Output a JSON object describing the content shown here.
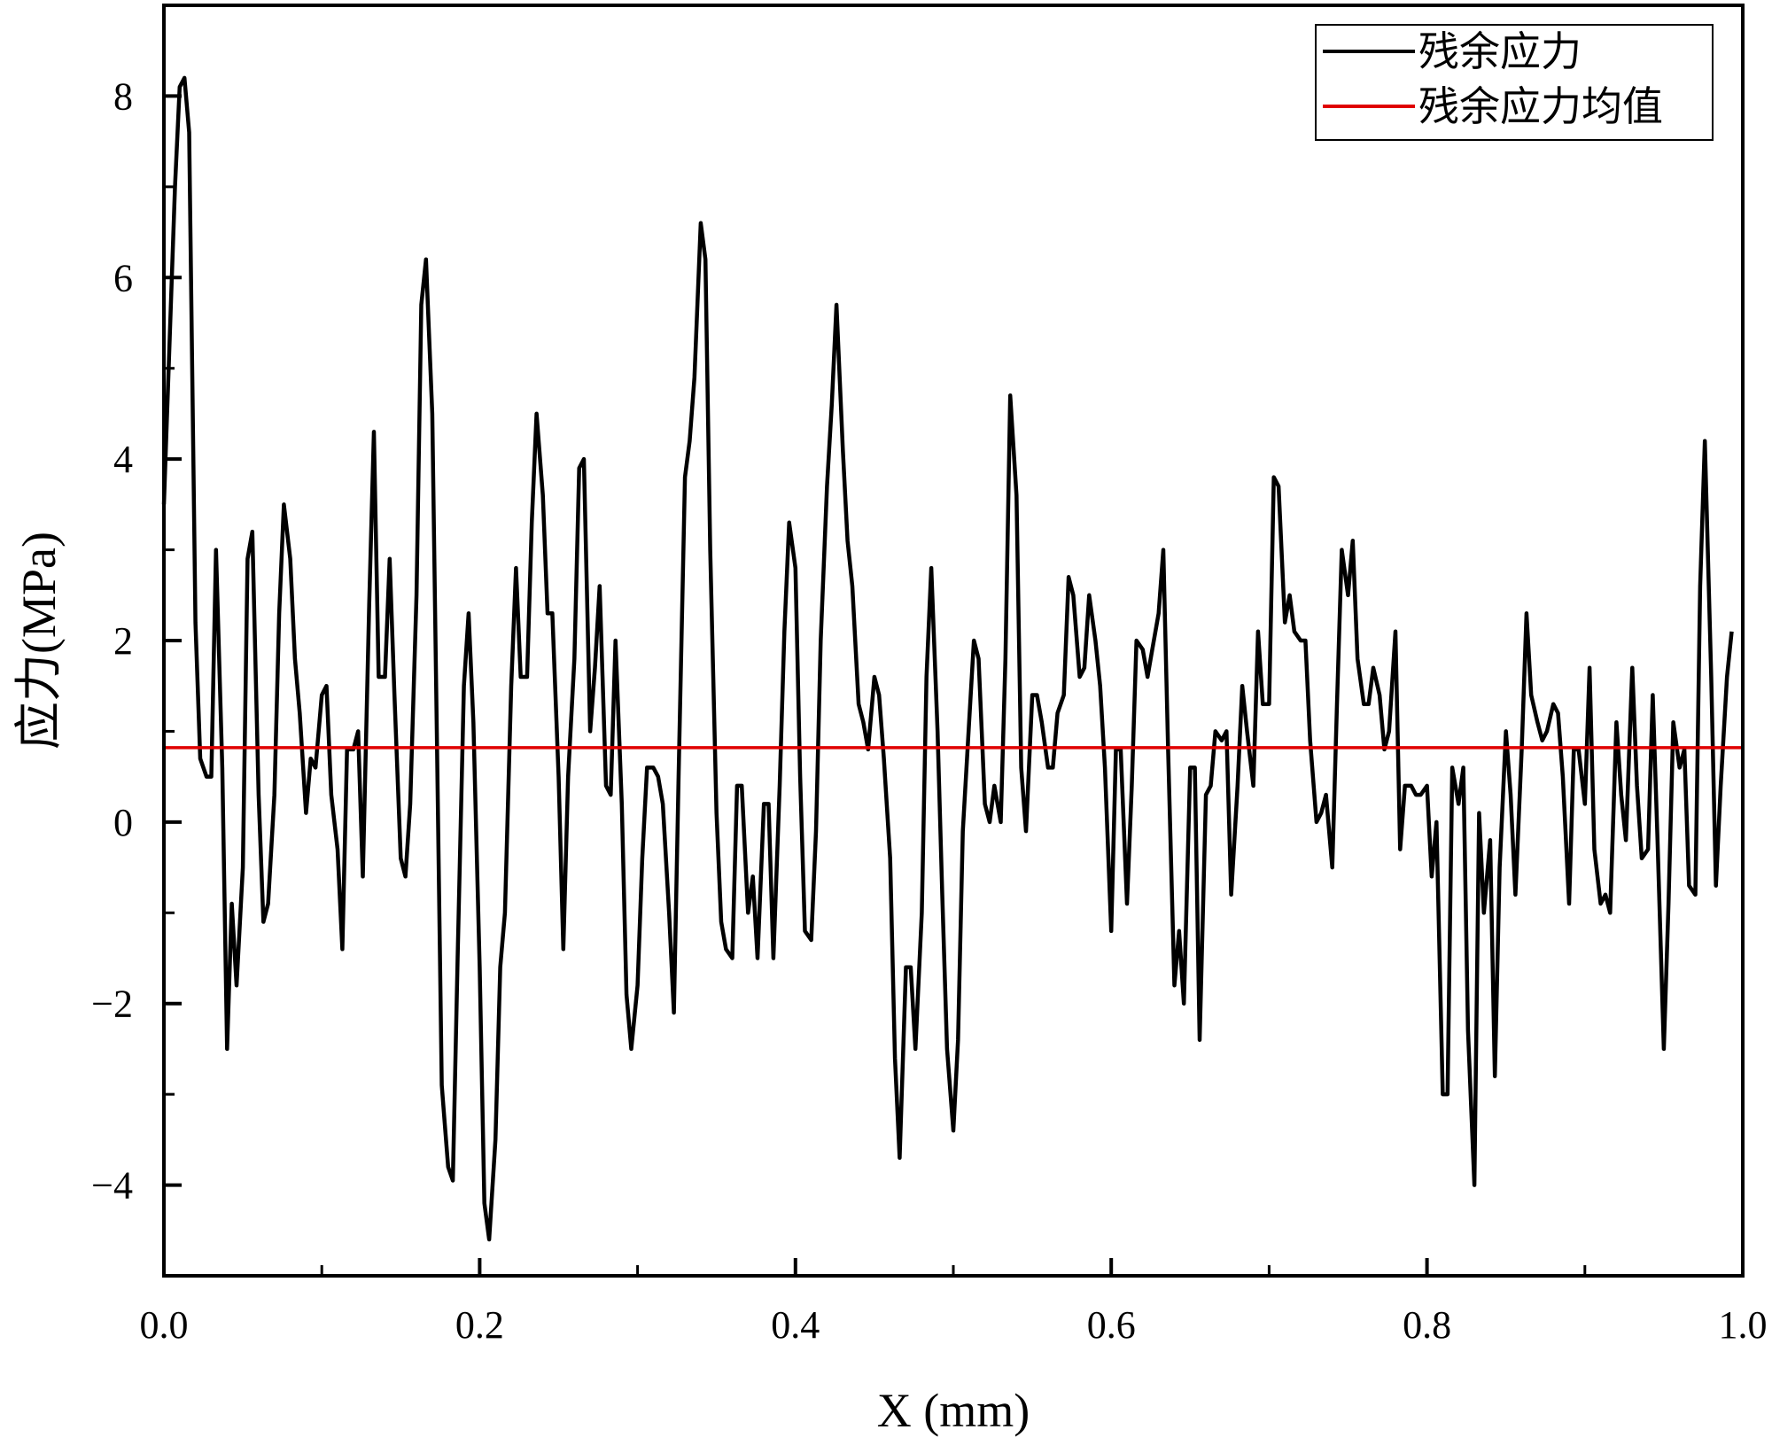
{
  "chart_data": {
    "type": "line",
    "xlabel": "X (mm)",
    "ylabel": "应力(MPa)",
    "xlim": [
      0.0,
      1.0
    ],
    "ylim": [
      -5.0,
      9.0
    ],
    "x_ticks": [
      0.0,
      0.2,
      0.4,
      0.6,
      0.8,
      1.0
    ],
    "x_tick_labels": [
      "0.0",
      "0.2",
      "0.4",
      "0.6",
      "0.8",
      "1.0"
    ],
    "x_minor_ticks": [
      0.1,
      0.3,
      0.5,
      0.7,
      0.9
    ],
    "y_ticks": [
      -4,
      -2,
      0,
      2,
      4,
      6,
      8
    ],
    "y_tick_labels": [
      "−4",
      "−2",
      "0",
      "2",
      "4",
      "6",
      "8"
    ],
    "y_minor_ticks": [
      -3,
      -1,
      1,
      3,
      5,
      7
    ],
    "grid": false,
    "legend_position": "top-right",
    "series": [
      {
        "name": "残余应力",
        "color": "#000000",
        "points": [
          [
            0.0,
            3.5
          ],
          [
            0.007,
            7.0
          ],
          [
            0.01,
            8.1
          ],
          [
            0.013,
            8.2
          ],
          [
            0.016,
            7.6
          ],
          [
            0.02,
            2.2
          ],
          [
            0.023,
            0.7
          ],
          [
            0.027,
            0.5
          ],
          [
            0.03,
            0.5
          ],
          [
            0.033,
            3.0
          ],
          [
            0.037,
            0.6
          ],
          [
            0.04,
            -2.5
          ],
          [
            0.043,
            -0.9
          ],
          [
            0.046,
            -1.8
          ],
          [
            0.05,
            -0.5
          ],
          [
            0.053,
            2.9
          ],
          [
            0.056,
            3.2
          ],
          [
            0.06,
            0.3
          ],
          [
            0.063,
            -1.1
          ],
          [
            0.066,
            -0.9
          ],
          [
            0.07,
            0.3
          ],
          [
            0.073,
            2.3
          ],
          [
            0.076,
            3.5
          ],
          [
            0.08,
            2.9
          ],
          [
            0.083,
            1.8
          ],
          [
            0.086,
            1.2
          ],
          [
            0.09,
            0.1
          ],
          [
            0.093,
            0.7
          ],
          [
            0.096,
            0.6
          ],
          [
            0.1,
            1.4
          ],
          [
            0.103,
            1.5
          ],
          [
            0.106,
            0.3
          ],
          [
            0.11,
            -0.3
          ],
          [
            0.113,
            -1.4
          ],
          [
            0.116,
            0.8
          ],
          [
            0.12,
            0.8
          ],
          [
            0.123,
            1.0
          ],
          [
            0.126,
            -0.6
          ],
          [
            0.13,
            2.4
          ],
          [
            0.133,
            4.3
          ],
          [
            0.136,
            1.6
          ],
          [
            0.14,
            1.6
          ],
          [
            0.143,
            2.9
          ],
          [
            0.146,
            1.4
          ],
          [
            0.15,
            -0.4
          ],
          [
            0.153,
            -0.6
          ],
          [
            0.156,
            0.2
          ],
          [
            0.16,
            2.5
          ],
          [
            0.163,
            5.7
          ],
          [
            0.166,
            6.2
          ],
          [
            0.17,
            4.5
          ],
          [
            0.173,
            0.8
          ],
          [
            0.176,
            -2.9
          ],
          [
            0.18,
            -3.8
          ],
          [
            0.183,
            -3.95
          ],
          [
            0.186,
            -1.5
          ],
          [
            0.19,
            1.5
          ],
          [
            0.193,
            2.3
          ],
          [
            0.196,
            1.1
          ],
          [
            0.2,
            -1.6
          ],
          [
            0.203,
            -4.2
          ],
          [
            0.206,
            -4.6
          ],
          [
            0.21,
            -3.5
          ],
          [
            0.213,
            -1.6
          ],
          [
            0.216,
            -1.0
          ],
          [
            0.22,
            1.5
          ],
          [
            0.223,
            2.8
          ],
          [
            0.226,
            1.6
          ],
          [
            0.23,
            1.6
          ],
          [
            0.233,
            3.3
          ],
          [
            0.236,
            4.5
          ],
          [
            0.24,
            3.6
          ],
          [
            0.243,
            2.3
          ],
          [
            0.246,
            2.3
          ],
          [
            0.25,
            0.5
          ],
          [
            0.253,
            -1.4
          ],
          [
            0.256,
            0.5
          ],
          [
            0.26,
            1.8
          ],
          [
            0.263,
            3.9
          ],
          [
            0.266,
            4.0
          ],
          [
            0.27,
            1.0
          ],
          [
            0.273,
            1.7
          ],
          [
            0.276,
            2.6
          ],
          [
            0.28,
            0.4
          ],
          [
            0.283,
            0.3
          ],
          [
            0.286,
            2.0
          ],
          [
            0.29,
            0.2
          ],
          [
            0.293,
            -1.9
          ],
          [
            0.296,
            -2.5
          ],
          [
            0.3,
            -1.8
          ],
          [
            0.303,
            -0.4
          ],
          [
            0.306,
            0.6
          ],
          [
            0.31,
            0.6
          ],
          [
            0.313,
            0.5
          ],
          [
            0.316,
            0.2
          ],
          [
            0.32,
            -1.0
          ],
          [
            0.323,
            -2.1
          ],
          [
            0.326,
            0.5
          ],
          [
            0.33,
            3.8
          ],
          [
            0.333,
            4.2
          ],
          [
            0.336,
            4.9
          ],
          [
            0.34,
            6.6
          ],
          [
            0.343,
            6.2
          ],
          [
            0.346,
            3.0
          ],
          [
            0.35,
            0.1
          ],
          [
            0.353,
            -1.1
          ],
          [
            0.356,
            -1.4
          ],
          [
            0.36,
            -1.5
          ],
          [
            0.363,
            0.4
          ],
          [
            0.366,
            0.4
          ],
          [
            0.37,
            -1.0
          ],
          [
            0.373,
            -0.6
          ],
          [
            0.376,
            -1.5
          ],
          [
            0.38,
            0.2
          ],
          [
            0.383,
            0.2
          ],
          [
            0.386,
            -1.5
          ],
          [
            0.39,
            0.4
          ],
          [
            0.393,
            2.1
          ],
          [
            0.396,
            3.3
          ],
          [
            0.4,
            2.8
          ],
          [
            0.403,
            0.5
          ],
          [
            0.406,
            -1.2
          ],
          [
            0.41,
            -1.3
          ],
          [
            0.413,
            -0.1
          ],
          [
            0.416,
            2.0
          ],
          [
            0.42,
            3.7
          ],
          [
            0.423,
            4.6
          ],
          [
            0.426,
            5.7
          ],
          [
            0.43,
            4.1
          ],
          [
            0.433,
            3.1
          ],
          [
            0.436,
            2.6
          ],
          [
            0.44,
            1.3
          ],
          [
            0.443,
            1.1
          ],
          [
            0.446,
            0.8
          ],
          [
            0.45,
            1.6
          ],
          [
            0.453,
            1.4
          ],
          [
            0.456,
            0.7
          ],
          [
            0.46,
            -0.4
          ],
          [
            0.463,
            -2.6
          ],
          [
            0.466,
            -3.7
          ],
          [
            0.47,
            -1.6
          ],
          [
            0.473,
            -1.6
          ],
          [
            0.476,
            -2.5
          ],
          [
            0.48,
            -1.0
          ],
          [
            0.483,
            1.6
          ],
          [
            0.486,
            2.8
          ],
          [
            0.49,
            1.0
          ],
          [
            0.493,
            -0.8
          ],
          [
            0.496,
            -2.5
          ],
          [
            0.5,
            -3.4
          ],
          [
            0.503,
            -2.4
          ],
          [
            0.506,
            -0.1
          ],
          [
            0.51,
            1.1
          ],
          [
            0.513,
            2.0
          ],
          [
            0.516,
            1.8
          ],
          [
            0.52,
            0.2
          ],
          [
            0.523,
            0.0
          ],
          [
            0.526,
            0.4
          ],
          [
            0.53,
            0.0
          ],
          [
            0.533,
            1.8
          ],
          [
            0.536,
            4.7
          ],
          [
            0.54,
            3.6
          ],
          [
            0.543,
            0.6
          ],
          [
            0.546,
            -0.1
          ],
          [
            0.55,
            1.4
          ],
          [
            0.553,
            1.4
          ],
          [
            0.556,
            1.1
          ],
          [
            0.56,
            0.6
          ],
          [
            0.563,
            0.6
          ],
          [
            0.566,
            1.2
          ],
          [
            0.57,
            1.4
          ],
          [
            0.573,
            2.7
          ],
          [
            0.576,
            2.5
          ],
          [
            0.58,
            1.6
          ],
          [
            0.583,
            1.7
          ],
          [
            0.586,
            2.5
          ],
          [
            0.59,
            2.0
          ],
          [
            0.593,
            1.5
          ],
          [
            0.596,
            0.6
          ],
          [
            0.6,
            -1.2
          ],
          [
            0.603,
            0.8
          ],
          [
            0.606,
            0.8
          ],
          [
            0.61,
            -0.9
          ],
          [
            0.613,
            0.4
          ],
          [
            0.616,
            2.0
          ],
          [
            0.62,
            1.9
          ],
          [
            0.623,
            1.6
          ],
          [
            0.626,
            1.9
          ],
          [
            0.63,
            2.3
          ],
          [
            0.633,
            3.0
          ],
          [
            0.636,
            0.8
          ],
          [
            0.64,
            -1.8
          ],
          [
            0.643,
            -1.2
          ],
          [
            0.646,
            -2.0
          ],
          [
            0.65,
            0.6
          ],
          [
            0.653,
            0.6
          ],
          [
            0.656,
            -2.4
          ],
          [
            0.66,
            0.3
          ],
          [
            0.663,
            0.4
          ],
          [
            0.666,
            1.0
          ],
          [
            0.67,
            0.9
          ],
          [
            0.673,
            1.0
          ],
          [
            0.676,
            -0.8
          ],
          [
            0.68,
            0.4
          ],
          [
            0.683,
            1.5
          ],
          [
            0.686,
            1.0
          ],
          [
            0.69,
            0.4
          ],
          [
            0.693,
            2.1
          ],
          [
            0.696,
            1.3
          ],
          [
            0.7,
            1.3
          ],
          [
            0.703,
            3.8
          ],
          [
            0.706,
            3.7
          ],
          [
            0.71,
            2.2
          ],
          [
            0.713,
            2.5
          ],
          [
            0.716,
            2.1
          ],
          [
            0.72,
            2.0
          ],
          [
            0.723,
            2.0
          ],
          [
            0.726,
            0.9
          ],
          [
            0.73,
            0.0
          ],
          [
            0.733,
            0.1
          ],
          [
            0.736,
            0.3
          ],
          [
            0.74,
            -0.5
          ],
          [
            0.743,
            1.3
          ],
          [
            0.746,
            3.0
          ],
          [
            0.75,
            2.5
          ],
          [
            0.753,
            3.1
          ],
          [
            0.756,
            1.8
          ],
          [
            0.76,
            1.3
          ],
          [
            0.763,
            1.3
          ],
          [
            0.766,
            1.7
          ],
          [
            0.77,
            1.4
          ],
          [
            0.773,
            0.8
          ],
          [
            0.776,
            1.0
          ],
          [
            0.78,
            2.1
          ],
          [
            0.783,
            -0.3
          ],
          [
            0.786,
            0.4
          ],
          [
            0.79,
            0.4
          ],
          [
            0.793,
            0.3
          ],
          [
            0.796,
            0.3
          ],
          [
            0.8,
            0.4
          ],
          [
            0.803,
            -0.6
          ],
          [
            0.806,
            0.0
          ],
          [
            0.81,
            -3.0
          ],
          [
            0.813,
            -3.0
          ],
          [
            0.816,
            0.6
          ],
          [
            0.82,
            0.2
          ],
          [
            0.823,
            0.6
          ],
          [
            0.826,
            -2.3
          ],
          [
            0.83,
            -4.0
          ],
          [
            0.833,
            0.1
          ],
          [
            0.836,
            -1.0
          ],
          [
            0.84,
            -0.2
          ],
          [
            0.843,
            -2.8
          ],
          [
            0.846,
            -0.5
          ],
          [
            0.85,
            1.0
          ],
          [
            0.853,
            0.3
          ],
          [
            0.856,
            -0.8
          ],
          [
            0.86,
            0.8
          ],
          [
            0.863,
            2.3
          ],
          [
            0.866,
            1.4
          ],
          [
            0.87,
            1.1
          ],
          [
            0.873,
            0.9
          ],
          [
            0.876,
            1.0
          ],
          [
            0.88,
            1.3
          ],
          [
            0.883,
            1.2
          ],
          [
            0.886,
            0.5
          ],
          [
            0.89,
            -0.9
          ],
          [
            0.893,
            0.8
          ],
          [
            0.896,
            0.8
          ],
          [
            0.9,
            0.2
          ],
          [
            0.903,
            1.7
          ],
          [
            0.906,
            -0.3
          ],
          [
            0.91,
            -0.9
          ],
          [
            0.913,
            -0.8
          ],
          [
            0.916,
            -1.0
          ],
          [
            0.92,
            1.1
          ],
          [
            0.923,
            0.3
          ],
          [
            0.926,
            -0.2
          ],
          [
            0.93,
            1.7
          ],
          [
            0.933,
            0.4
          ],
          [
            0.936,
            -0.4
          ],
          [
            0.94,
            -0.3
          ],
          [
            0.943,
            1.4
          ],
          [
            0.946,
            -0.2
          ],
          [
            0.95,
            -2.5
          ],
          [
            0.953,
            -0.9
          ],
          [
            0.956,
            1.1
          ],
          [
            0.96,
            0.6
          ],
          [
            0.963,
            0.8
          ],
          [
            0.966,
            -0.7
          ],
          [
            0.97,
            -0.8
          ],
          [
            0.973,
            2.6
          ],
          [
            0.976,
            4.2
          ],
          [
            0.98,
            1.6
          ],
          [
            0.983,
            -0.7
          ],
          [
            0.986,
            0.4
          ],
          [
            0.99,
            1.6
          ],
          [
            0.993,
            2.1
          ]
        ]
      },
      {
        "name": "残余应力均值",
        "color": "#e00000",
        "points": [
          [
            0.0,
            0.82
          ],
          [
            1.0,
            0.82
          ]
        ]
      }
    ]
  }
}
